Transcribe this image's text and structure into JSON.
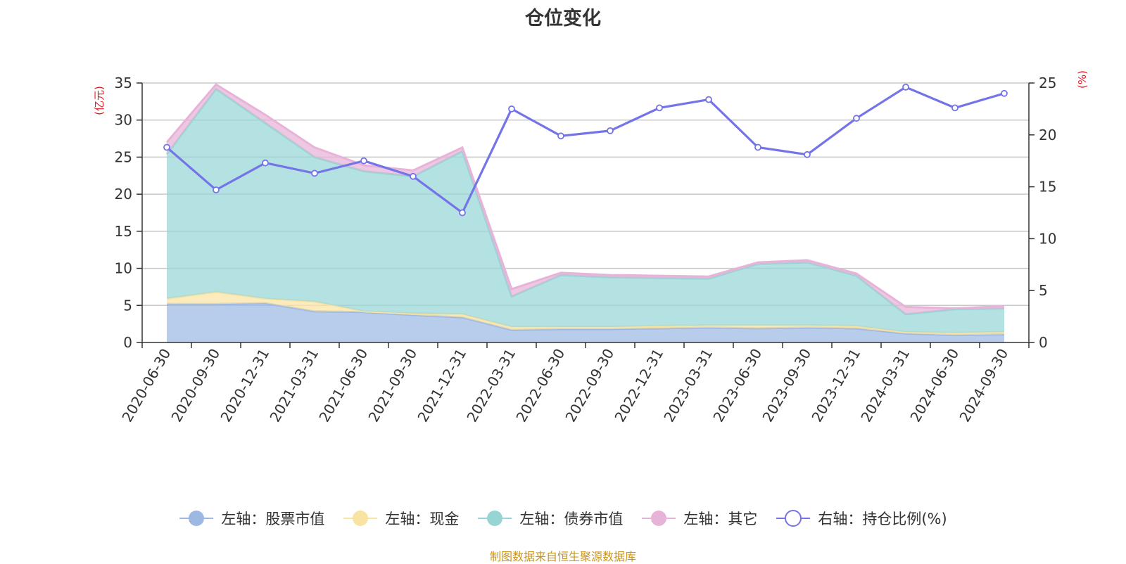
{
  "title": "仓位变化",
  "source_note": "制图数据来自恒生聚源数据库",
  "chart_data": {
    "type": "area",
    "title": "仓位变化",
    "categories": [
      "2020-06-30",
      "2020-09-30",
      "2020-12-31",
      "2021-03-31",
      "2021-06-30",
      "2021-09-30",
      "2021-12-31",
      "2022-03-31",
      "2022-06-30",
      "2022-09-30",
      "2022-12-31",
      "2023-03-31",
      "2023-06-30",
      "2023-09-30",
      "2023-12-31",
      "2024-03-31",
      "2024-06-30",
      "2024-09-30"
    ],
    "left_axis": {
      "unit": "(亿元)",
      "ylim": [
        0,
        35
      ],
      "ticks": [
        0,
        5,
        10,
        15,
        20,
        25,
        30,
        35
      ]
    },
    "right_axis": {
      "unit": "(%)",
      "ylim": [
        0,
        25
      ],
      "ticks": [
        0,
        5,
        10,
        15,
        20,
        25
      ]
    },
    "stacked_series": [
      {
        "name": "左轴：股票市值",
        "color": "#9cb8e3",
        "values": [
          5.2,
          5.2,
          5.3,
          4.2,
          4.1,
          3.7,
          3.4,
          1.7,
          1.8,
          1.8,
          1.9,
          2.0,
          1.9,
          2.0,
          1.9,
          1.2,
          1.0,
          1.1
        ]
      },
      {
        "name": "左轴：现金",
        "color": "#f9e3a3",
        "values": [
          0.7,
          1.6,
          0.6,
          1.3,
          0.1,
          0.2,
          0.4,
          0.4,
          0.3,
          0.3,
          0.3,
          0.3,
          0.4,
          0.3,
          0.3,
          0.2,
          0.3,
          0.3
        ]
      },
      {
        "name": "左轴：债券市值",
        "color": "#97d5d5",
        "values": [
          19.5,
          27.4,
          23.7,
          19.5,
          18.9,
          18.5,
          22.0,
          4.1,
          7.0,
          6.7,
          6.5,
          6.3,
          8.3,
          8.5,
          6.8,
          2.4,
          3.2,
          3.2
        ]
      },
      {
        "name": "左轴：其它",
        "color": "#e8b3d8",
        "values": [
          1.6,
          0.6,
          1.1,
          1.3,
          0.8,
          0.8,
          0.5,
          1.0,
          0.3,
          0.3,
          0.3,
          0.3,
          0.2,
          0.3,
          0.3,
          1.0,
          0.1,
          0.3
        ]
      }
    ],
    "line_series": {
      "name": "右轴：持仓比例(%)",
      "color": "#7474e8",
      "axis": "right",
      "values": [
        18.8,
        14.7,
        17.3,
        16.3,
        17.5,
        16.0,
        12.5,
        22.5,
        19.9,
        20.4,
        22.6,
        23.4,
        18.8,
        18.1,
        21.6,
        24.6,
        22.6,
        24.0
      ]
    },
    "grid": true,
    "legend_position": "bottom"
  }
}
